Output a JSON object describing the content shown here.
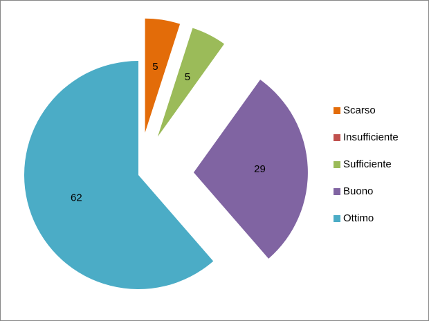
{
  "chart_data": {
    "type": "pie",
    "categories": [
      "Scarso",
      "Insufficiente",
      "Sufficiente",
      "Buono",
      "Ottimo"
    ],
    "values": [
      5,
      0,
      5,
      29,
      62
    ],
    "colors": [
      "#e36c09",
      "#c0504d",
      "#9bbb59",
      "#8064a2",
      "#4bacc6"
    ],
    "legend": "right"
  }
}
